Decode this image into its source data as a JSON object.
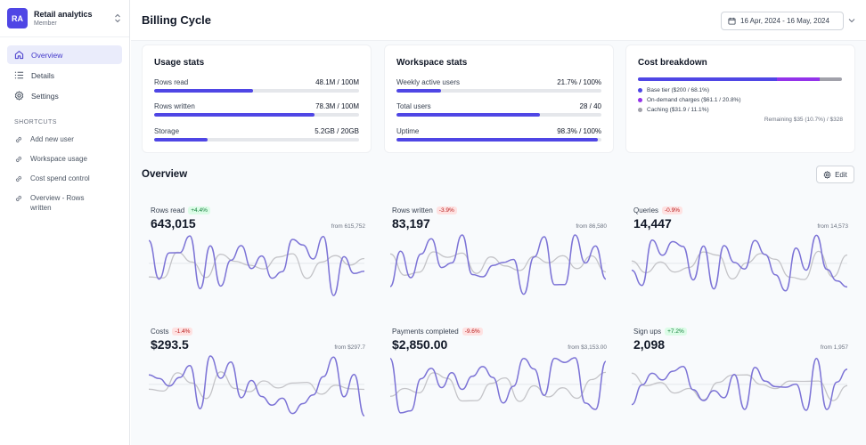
{
  "workspace": {
    "initials": "RA",
    "name": "Retail analytics",
    "role": "Member"
  },
  "nav": {
    "items": [
      {
        "label": "Overview",
        "icon": "home-icon"
      },
      {
        "label": "Details",
        "icon": "list-icon"
      },
      {
        "label": "Settings",
        "icon": "gear-icon"
      }
    ]
  },
  "shortcuts": {
    "label": "SHORTCUTS",
    "items": [
      {
        "label": "Add new user"
      },
      {
        "label": "Workspace usage"
      },
      {
        "label": "Cost spend control"
      },
      {
        "label": "Overview - Rows written"
      }
    ]
  },
  "header": {
    "title": "Billing Cycle",
    "date_range": "16 Apr, 2024 - 16 May, 2024"
  },
  "usage": {
    "title": "Usage stats",
    "items": [
      {
        "label": "Rows read",
        "value": "48.1M / 100M",
        "fraction": 0.481
      },
      {
        "label": "Rows written",
        "value": "78.3M / 100M",
        "fraction": 0.783
      },
      {
        "label": "Storage",
        "value": "5.2GB / 20GB",
        "fraction": 0.26
      }
    ]
  },
  "workspace_stats": {
    "title": "Workspace stats",
    "items": [
      {
        "label": "Weekly active users",
        "value": "21.7% / 100%",
        "fraction": 0.217
      },
      {
        "label": "Total users",
        "value": "28 / 40",
        "fraction": 0.7
      },
      {
        "label": "Uptime",
        "value": "98.3% / 100%",
        "fraction": 0.983
      }
    ]
  },
  "cost": {
    "title": "Cost breakdown",
    "items": [
      {
        "label": "Base tier ($200 / 68.1%)",
        "fraction": 0.681,
        "color": "#4f46e5"
      },
      {
        "label": "On-demand charges ($61.1 / 20.8%)",
        "fraction": 0.208,
        "color": "#9333ea"
      },
      {
        "label": "Caching ($31.9 / 11.1%)",
        "fraction": 0.111,
        "color": "#a1a1aa"
      }
    ],
    "remaining": "Remaining $35 (10.7%) / $328"
  },
  "overview": {
    "title": "Overview",
    "edit_label": "Edit"
  },
  "kpis": [
    {
      "label": "Rows read",
      "change": "+4.4%",
      "trend": "up",
      "value": "643,015",
      "from": "from 615,752"
    },
    {
      "label": "Rows written",
      "change": "-3.9%",
      "trend": "down",
      "value": "83,197",
      "from": "from 86,580"
    },
    {
      "label": "Queries",
      "change": "-0.9%",
      "trend": "down",
      "value": "14,447",
      "from": "from 14,573"
    },
    {
      "label": "Costs",
      "change": "-1.4%",
      "trend": "down",
      "value": "$293.5",
      "from": "from $297.7"
    },
    {
      "label": "Payments completed",
      "change": "-9.6%",
      "trend": "down",
      "value": "$2,850.00",
      "from": "from $3,153.00"
    },
    {
      "label": "Sign ups",
      "change": "+7.2%",
      "trend": "up",
      "value": "2,098",
      "from": "from 1,957"
    }
  ],
  "colors": {
    "accent": "#4f46e5",
    "spark_current": "#7c73d6",
    "spark_previous": "#c4c4c8"
  }
}
